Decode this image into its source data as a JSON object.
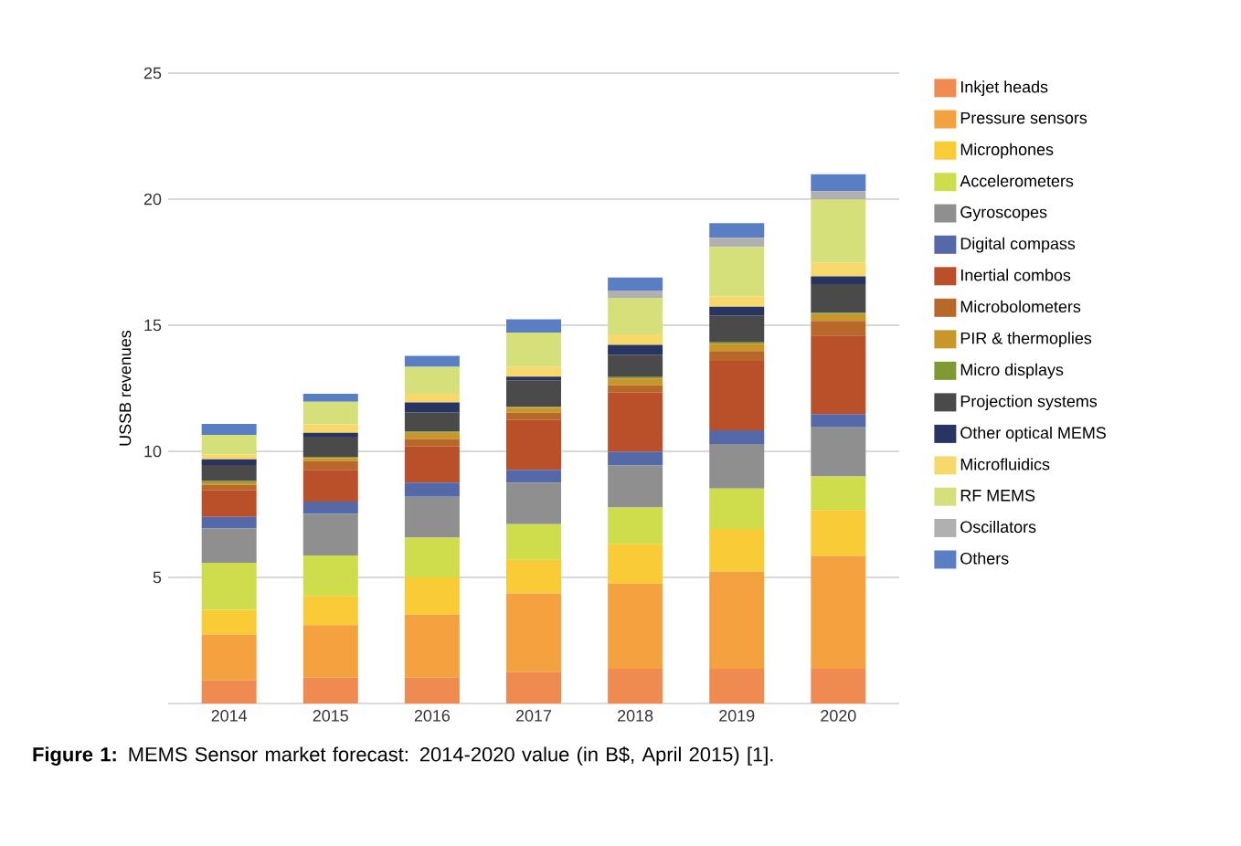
{
  "chart_data": {
    "type": "bar",
    "stacked": true,
    "ylabel": "USSB revenues",
    "categories": [
      "2014",
      "2015",
      "2016",
      "2017",
      "2018",
      "2019",
      "2020"
    ],
    "ylim": [
      0,
      25
    ],
    "yticks": [
      5,
      10,
      15,
      20,
      25
    ],
    "grid": "y",
    "legend": "right",
    "annotations": [
      "**Figure 1:** MEMS Sensor market forecast: 2014-2020 value (in B$, April 2015) [1]."
    ],
    "series": [
      {
        "name": "Inkjet heads",
        "color": "#ef8a50",
        "values": [
          0.92,
          1.02,
          1.02,
          1.24,
          1.38,
          1.38,
          1.38
        ]
      },
      {
        "name": "Pressure sensors",
        "color": "#f3a23f",
        "values": [
          1.82,
          2.09,
          2.5,
          3.13,
          3.38,
          3.86,
          4.47
        ]
      },
      {
        "name": "Microphones",
        "color": "#f8cb37",
        "values": [
          0.97,
          1.16,
          1.48,
          1.33,
          1.55,
          1.68,
          1.82
        ]
      },
      {
        "name": "Accelerometers",
        "color": "#cedd4b",
        "values": [
          1.87,
          1.6,
          1.58,
          1.41,
          1.46,
          1.6,
          1.33
        ]
      },
      {
        "name": "Gyroscopes",
        "color": "#8f8f8f",
        "values": [
          1.36,
          1.65,
          1.62,
          1.65,
          1.67,
          1.77,
          1.95
        ]
      },
      {
        "name": "Digital compass",
        "color": "#5568a8",
        "values": [
          0.46,
          0.49,
          0.56,
          0.51,
          0.54,
          0.54,
          0.53
        ]
      },
      {
        "name": "Inertial combos",
        "color": "#b9502a",
        "values": [
          1.05,
          1.26,
          1.43,
          1.97,
          2.35,
          2.76,
          3.11
        ]
      },
      {
        "name": "Microbolometers",
        "color": "#b8692a",
        "values": [
          0.22,
          0.34,
          0.3,
          0.29,
          0.29,
          0.39,
          0.58
        ]
      },
      {
        "name": "PIR & thermoplies",
        "color": "#c9962a",
        "values": [
          0.1,
          0.12,
          0.24,
          0.19,
          0.27,
          0.29,
          0.27
        ]
      },
      {
        "name": "Micro displays",
        "color": "#7f9a33",
        "values": [
          0.05,
          0.05,
          0.05,
          0.05,
          0.05,
          0.05,
          0.05
        ]
      },
      {
        "name": "Projection systems",
        "color": "#4a4a4a",
        "values": [
          0.64,
          0.8,
          0.77,
          1.05,
          0.89,
          1.07,
          1.14
        ]
      },
      {
        "name": "Other optical MEMS",
        "color": "#283462",
        "values": [
          0.22,
          0.15,
          0.39,
          0.14,
          0.39,
          0.34,
          0.31
        ]
      },
      {
        "name": "Microfluidics",
        "color": "#f7d86a",
        "values": [
          0.19,
          0.34,
          0.34,
          0.39,
          0.42,
          0.41,
          0.54
        ]
      },
      {
        "name": "RF MEMS",
        "color": "#d5e07a",
        "values": [
          0.78,
          0.9,
          1.07,
          1.36,
          1.45,
          1.97,
          2.5
        ]
      },
      {
        "name": "Oscillators",
        "color": "#b0b0b0",
        "values": [
          null,
          null,
          null,
          null,
          0.29,
          0.36,
          0.34
        ]
      },
      {
        "name": "Others",
        "color": "#5a7ec4",
        "values": [
          0.44,
          0.31,
          0.44,
          0.53,
          0.51,
          0.58,
          0.67
        ]
      }
    ]
  }
}
